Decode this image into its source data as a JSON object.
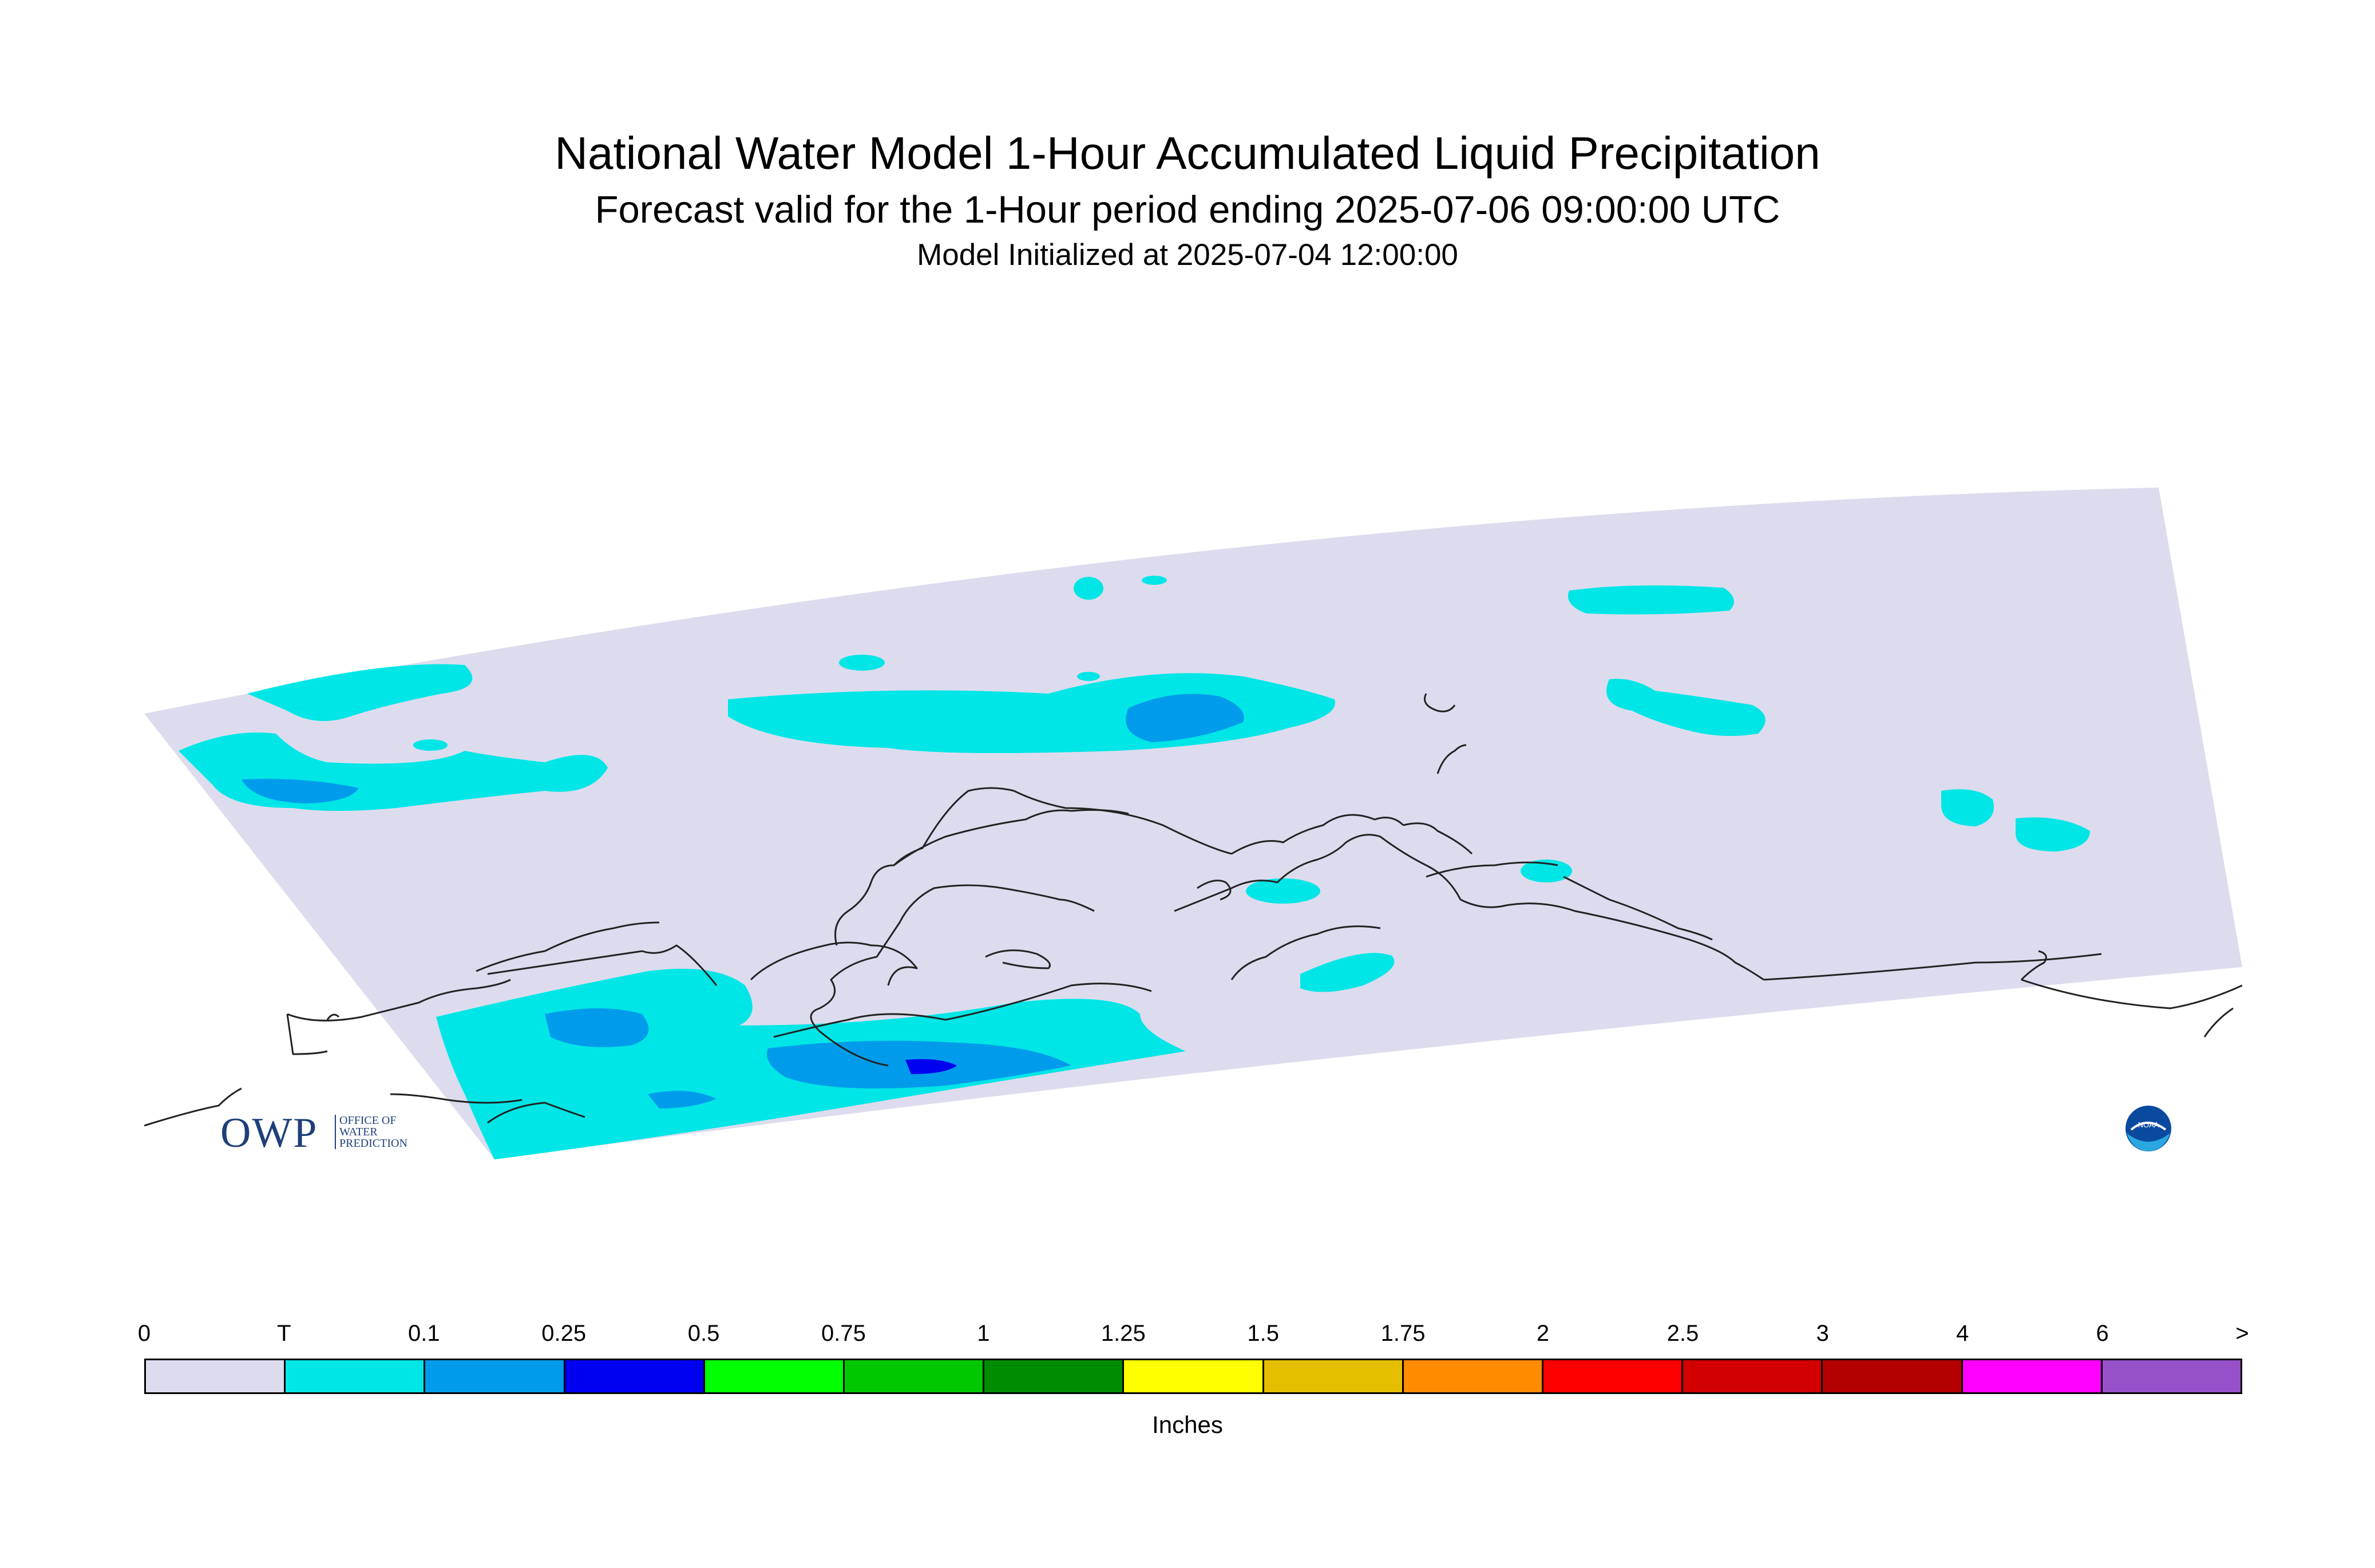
{
  "header": {
    "title": "National Water Model 1-Hour Accumulated Liquid Precipitation",
    "subtitle": "Forecast valid for the 1-Hour period ending 2025-07-06 09:00:00 UTC",
    "init": "Model Initialized at 2025-07-04 12:00:00"
  },
  "legend": {
    "ticks": [
      "0",
      "T",
      "0.1",
      "0.25",
      "0.5",
      "0.75",
      "1",
      "1.25",
      "1.5",
      "1.75",
      "2",
      "2.5",
      "3",
      "4",
      "6",
      ">"
    ],
    "colors": [
      "#dcdcee",
      "#00e6e6",
      "#009ceb",
      "#0000f0",
      "#00ff00",
      "#00c800",
      "#008c00",
      "#ffff00",
      "#e6be00",
      "#ff8c00",
      "#ff0000",
      "#d20000",
      "#b40000",
      "#ff00ff",
      "#9650c8"
    ],
    "units": "Inches"
  },
  "logos": {
    "owp_mark": "OWP",
    "owp_text": "OFFICE OF\nWATER\nPREDICTION",
    "noaa_text": "NOAA"
  },
  "colors": {
    "domain": "#dcdcee",
    "trace": "#00e6e6",
    "light": "#009ceb",
    "heavy": "#0000f0",
    "coast": "#222222"
  }
}
